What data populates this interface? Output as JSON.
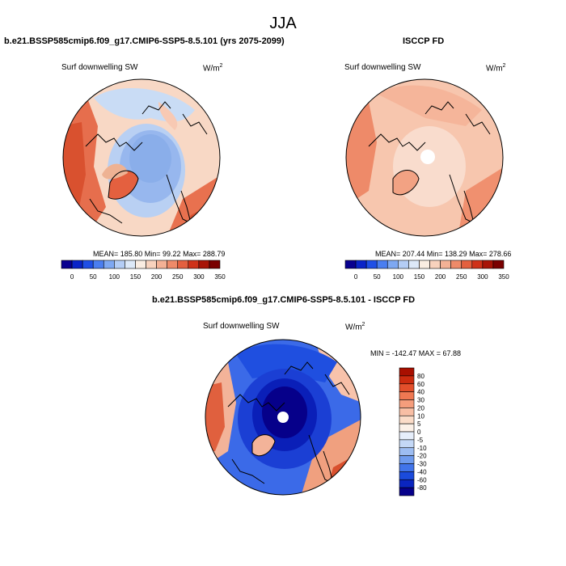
{
  "figure": {
    "title": "JJA"
  },
  "panels": [
    {
      "title": "b.e21.BSSP585cmip6.f09_g17.CMIP6-SSP5-8.5.101 (yrs 2075-2099)",
      "variable": "Surf downwelling SW",
      "units_base": "W/m",
      "units_exp": "2",
      "stats": "MEAN= 185.80  Min=  99.22  Max= 288.79",
      "stats_values": {
        "mean": 185.8,
        "min": 99.22,
        "max": 288.79
      }
    },
    {
      "title": "ISCCP FD",
      "variable": "Surf downwelling SW",
      "units_base": "W/m",
      "units_exp": "2",
      "stats": "MEAN= 207.44  Min= 138.29  Max= 278.66",
      "stats_values": {
        "mean": 207.44,
        "min": 138.29,
        "max": 278.66
      }
    },
    {
      "title": "b.e21.BSSP585cmip6.f09_g17.CMIP6-SSP5-8.5.101 - ISCCP FD",
      "variable": "Surf downwelling SW",
      "units_base": "W/m",
      "units_exp": "2",
      "stats": "MIN = -142.47 MAX =  67.88",
      "stats_values": {
        "min": -142.47,
        "max": 67.88
      }
    }
  ],
  "colorbar_horizontal": {
    "labels": [
      "0",
      "50",
      "100",
      "150",
      "200",
      "250",
      "300",
      "350"
    ],
    "colors": [
      "#08008f",
      "#0a24c8",
      "#1f4fe6",
      "#4a7ef0",
      "#7ea8f2",
      "#b4cdf5",
      "#dde9f8",
      "#faede2",
      "#f8d2bd",
      "#f4b195",
      "#ee8a69",
      "#e4603f",
      "#cf3219",
      "#a81407",
      "#7a0000"
    ]
  },
  "colorbar_vertical": {
    "labels": [
      "80",
      "60",
      "40",
      "30",
      "20",
      "10",
      "5",
      "0",
      "-5",
      "-10",
      "-20",
      "-30",
      "-40",
      "-60",
      "-80"
    ],
    "colors": [
      "#a80f00",
      "#cc2b0f",
      "#e34f2b",
      "#ef7852",
      "#f59d7c",
      "#f8bea4",
      "#fbdcc8",
      "#fcf1e8",
      "#e6eefb",
      "#c4d8f6",
      "#9dbdf2",
      "#6f9bee",
      "#4174ea",
      "#1b4bdc",
      "#0a25c0",
      "#06008a"
    ]
  }
}
